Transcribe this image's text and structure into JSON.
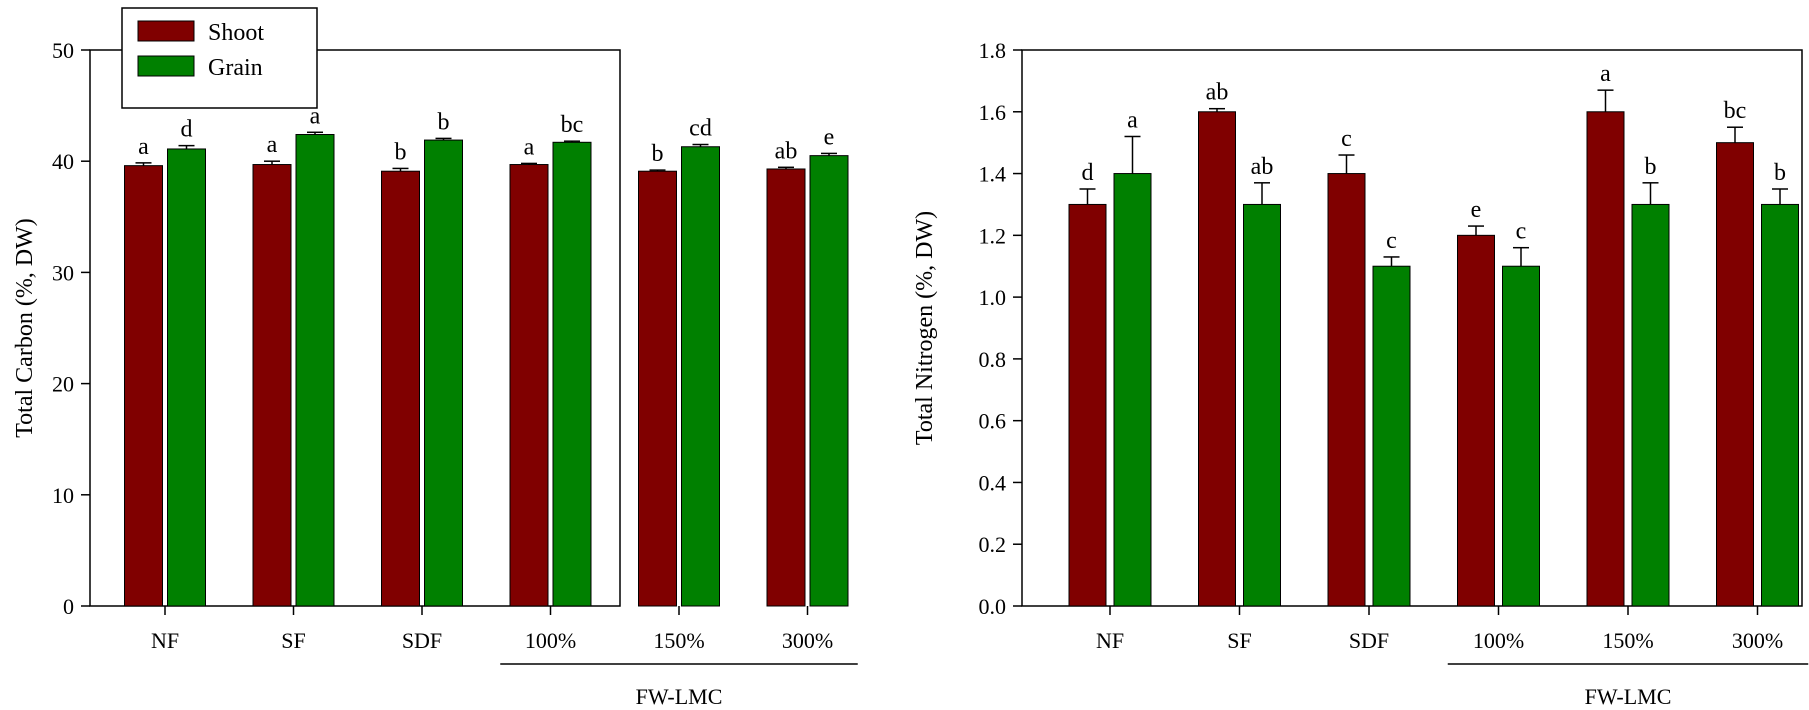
{
  "chart_data": [
    {
      "type": "bar",
      "categories": [
        "NF",
        "SF",
        "SDF",
        "100%",
        "150%",
        "300%"
      ],
      "group_label": "FW-LMC",
      "group_categories": [
        "100%",
        "150%",
        "300%"
      ],
      "ylabel": "Total Carbon (%, DW)",
      "xlabel": "",
      "ylim": [
        0,
        50
      ],
      "yticks": [
        0,
        10,
        20,
        30,
        40,
        50
      ],
      "tick_format": "int",
      "legend": "top-left",
      "series": [
        {
          "name": "Shoot",
          "color": "#800000",
          "values": [
            39.6,
            39.7,
            39.1,
            39.7,
            39.1,
            39.3
          ],
          "errors": [
            0.25,
            0.3,
            0.25,
            0.1,
            0.1,
            0.15
          ],
          "letters": [
            "a",
            "a",
            "b",
            "a",
            "b",
            "ab"
          ]
        },
        {
          "name": "Grain",
          "color": "#008000",
          "values": [
            41.1,
            42.4,
            41.9,
            41.7,
            41.3,
            40.5
          ],
          "errors": [
            0.3,
            0.2,
            0.15,
            0.1,
            0.2,
            0.2
          ],
          "letters": [
            "d",
            "a",
            "b",
            "bc",
            "cd",
            "e"
          ]
        }
      ]
    },
    {
      "type": "bar",
      "categories": [
        "NF",
        "SF",
        "SDF",
        "100%",
        "150%",
        "300%"
      ],
      "group_label": "FW-LMC",
      "group_categories": [
        "100%",
        "150%",
        "300%"
      ],
      "ylabel": "Total Nitrogen (%, DW)",
      "xlabel": "",
      "ylim": [
        0,
        1.8
      ],
      "yticks": [
        0.0,
        0.2,
        0.4,
        0.6,
        0.8,
        1.0,
        1.2,
        1.4,
        1.6,
        1.8
      ],
      "tick_format": "one-decimal",
      "series": [
        {
          "name": "Shoot",
          "color": "#800000",
          "values": [
            1.3,
            1.6,
            1.4,
            1.2,
            1.6,
            1.5
          ],
          "errors": [
            0.05,
            0.01,
            0.06,
            0.03,
            0.07,
            0.05
          ],
          "letters": [
            "d",
            "ab",
            "c",
            "e",
            "a",
            "bc"
          ]
        },
        {
          "name": "Grain",
          "color": "#008000",
          "values": [
            1.4,
            1.3,
            1.1,
            1.1,
            1.3,
            1.3
          ],
          "errors": [
            0.12,
            0.07,
            0.03,
            0.06,
            0.07,
            0.05
          ],
          "letters": [
            "a",
            "ab",
            "c",
            "c",
            "b",
            "b"
          ]
        }
      ]
    }
  ]
}
